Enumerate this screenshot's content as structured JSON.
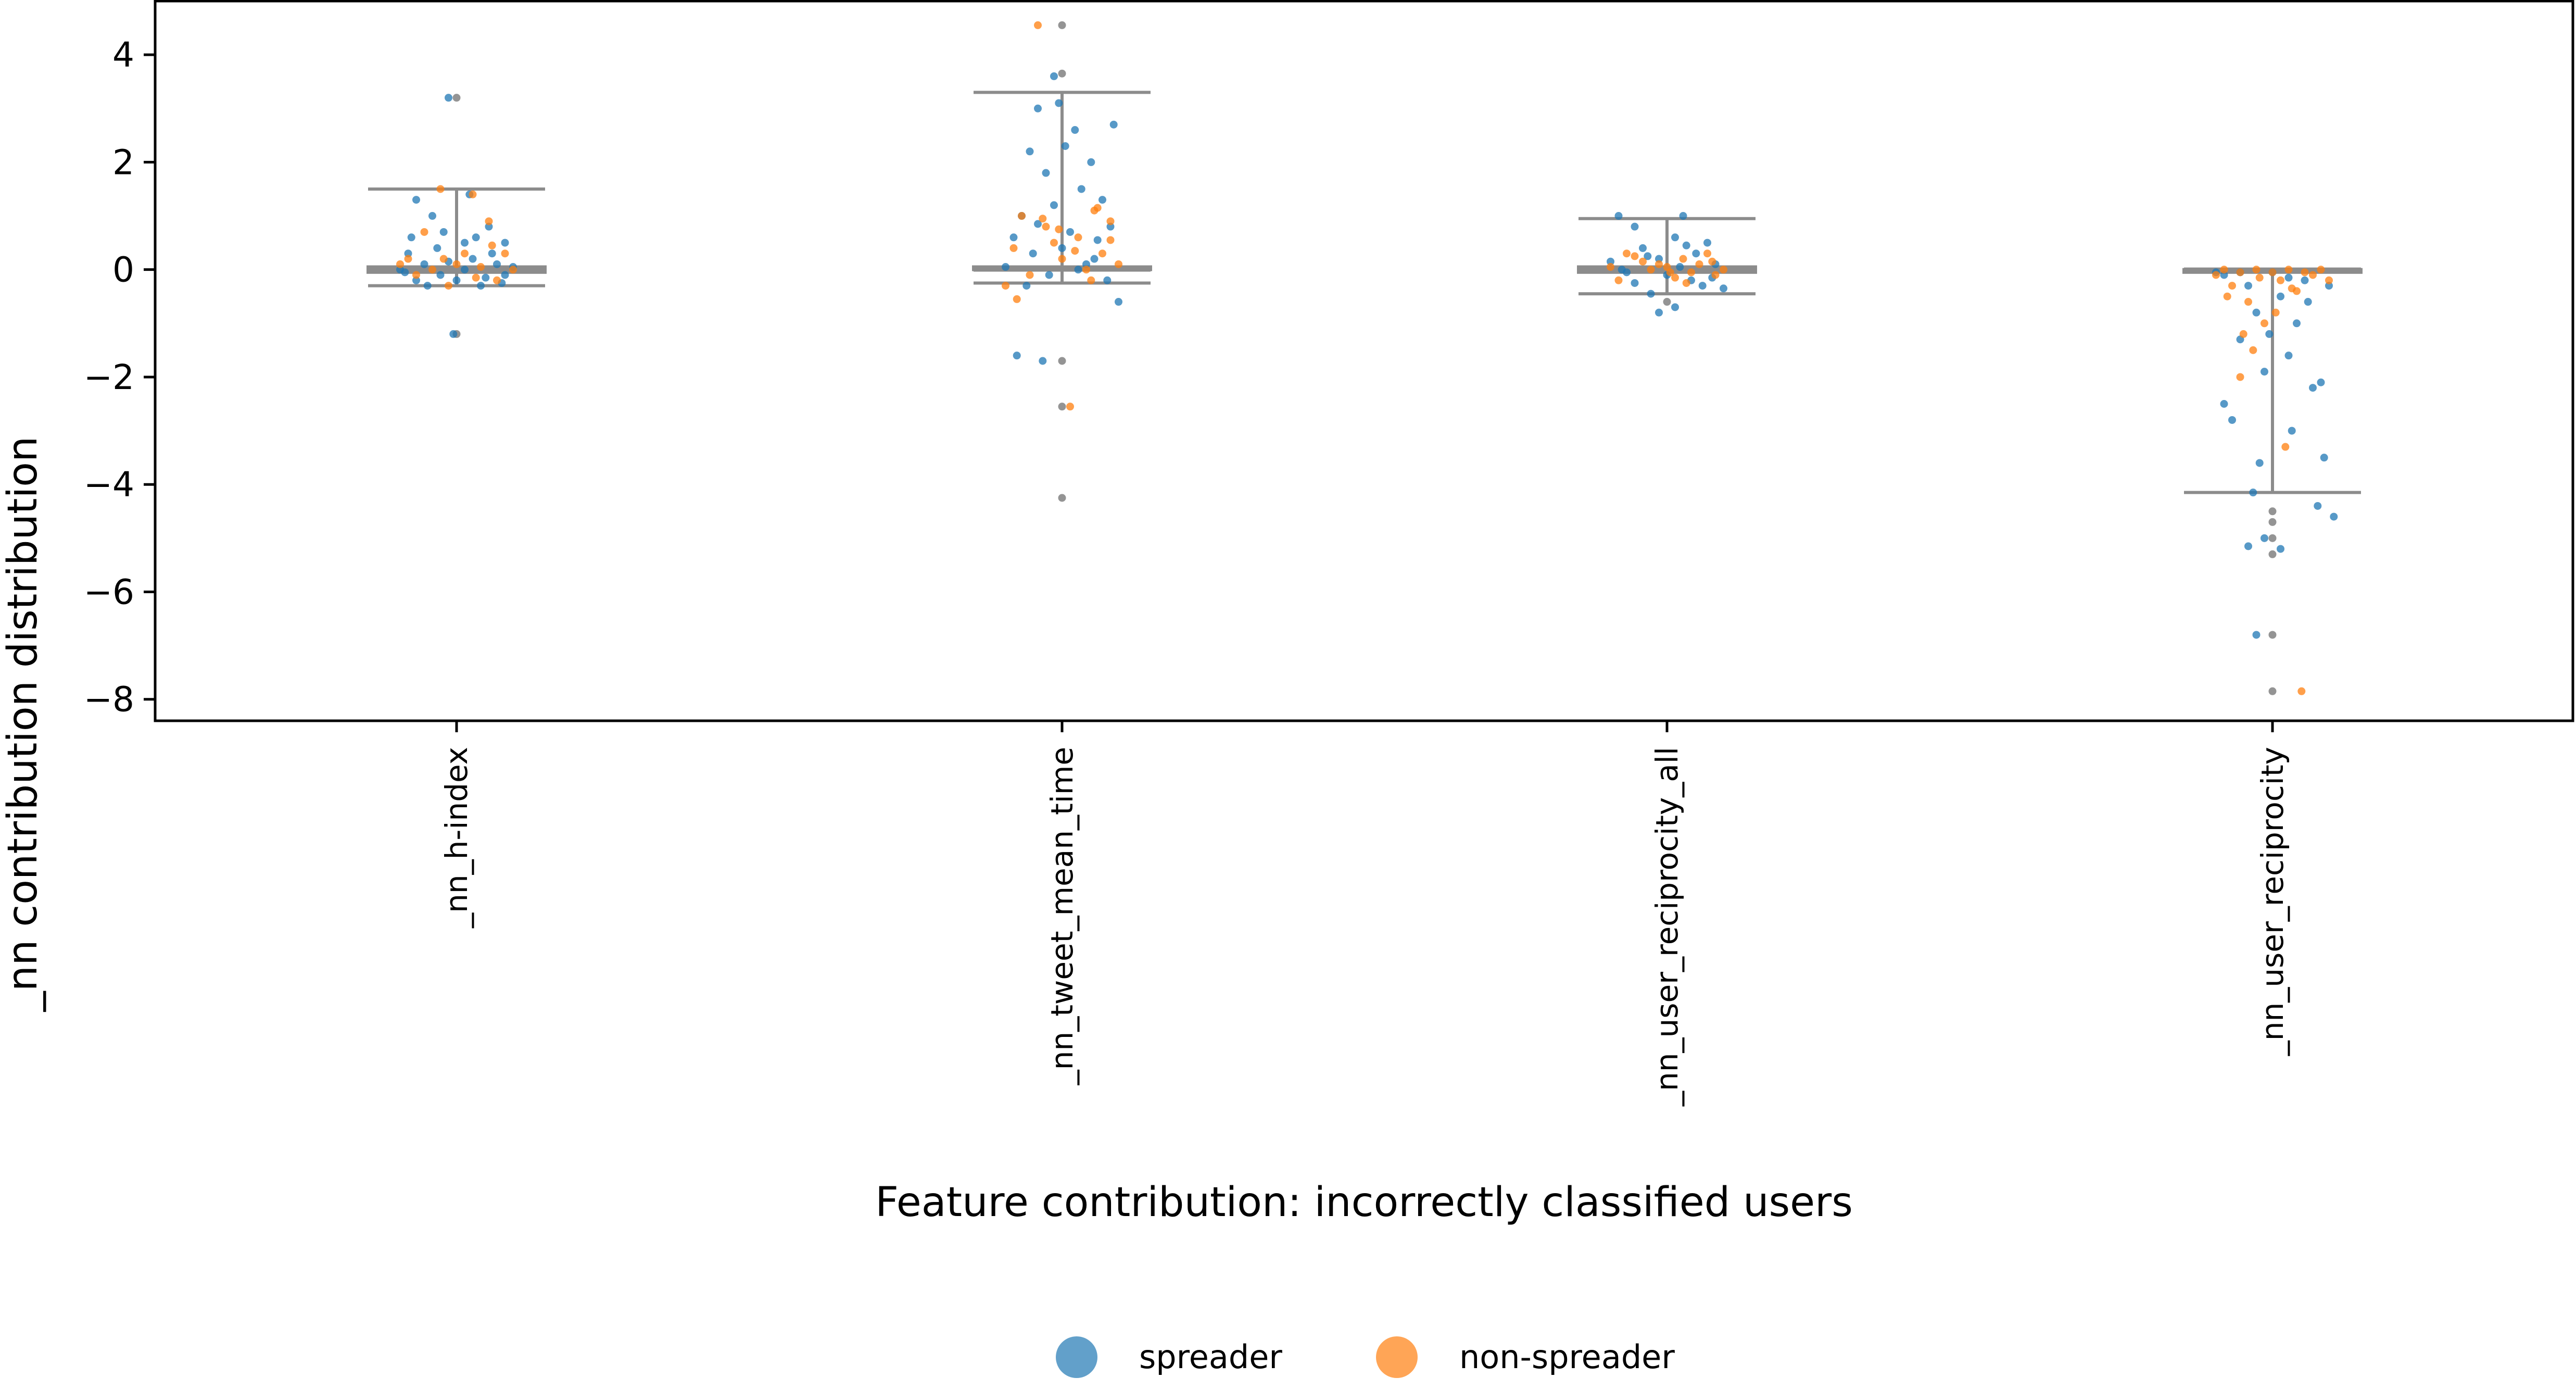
{
  "chart_data": {
    "type": "scatter",
    "subtype": "strip-with-boxplot",
    "title": "",
    "xlabel": "Feature contribution: incorrectly classified users",
    "ylabel": "_nn contribution distribution",
    "ylim": [
      -8.4,
      5.0
    ],
    "yticks": [
      4,
      2,
      0,
      -2,
      -4,
      -6,
      -8
    ],
    "ytick_labels": [
      "4",
      "2",
      "0",
      "−2",
      "−4",
      "−6",
      "−8"
    ],
    "categories": [
      "_nn_h-index",
      "_nn_tweet_mean_time",
      "_nn_user_reciprocity_all",
      "_nn_user_reciprocity"
    ],
    "grid": false,
    "legend_position": "bottom-center",
    "legend": [
      {
        "name": "spreader",
        "color": "#1f77b4"
      },
      {
        "name": "non-spreader",
        "color": "#ff7f0e"
      }
    ],
    "boxplot": [
      {
        "category": "_nn_h-index",
        "q1": -0.05,
        "median": 0.0,
        "q3": 0.05,
        "whisker_low": -0.3,
        "whisker_high": 1.5
      },
      {
        "category": "_nn_tweet_mean_time",
        "q1": 0.0,
        "median": 0.0,
        "q3": 0.05,
        "whisker_low": -0.25,
        "whisker_high": 3.3
      },
      {
        "category": "_nn_user_reciprocity_all",
        "q1": -0.05,
        "median": 0.0,
        "q3": 0.05,
        "whisker_low": -0.45,
        "whisker_high": 0.95
      },
      {
        "category": "_nn_user_reciprocity",
        "q1": -0.05,
        "median": 0.0,
        "q3": 0.0,
        "whisker_low": -4.15,
        "whisker_high": 0.0
      }
    ],
    "outliers": [
      {
        "category": "_nn_h-index",
        "values": [
          3.2,
          -1.2
        ]
      },
      {
        "category": "_nn_tweet_mean_time",
        "values": [
          4.55,
          3.65,
          -1.7,
          -2.55,
          -4.25
        ]
      },
      {
        "category": "_nn_user_reciprocity_all",
        "values": [
          -0.6
        ]
      },
      {
        "category": "_nn_user_reciprocity",
        "values": [
          -4.5,
          -4.7,
          -5.0,
          -5.3,
          -6.8,
          -7.85
        ]
      }
    ],
    "series": [
      {
        "name": "spreader",
        "points": {
          "_nn_h-index": [
            [
              -0.05,
              3.2
            ],
            [
              -0.02,
              -1.2
            ],
            [
              -0.25,
              1.3
            ],
            [
              -0.15,
              1.0
            ],
            [
              -0.08,
              0.7
            ],
            [
              0.05,
              0.5
            ],
            [
              0.2,
              0.8
            ],
            [
              0.3,
              0.5
            ],
            [
              -0.3,
              0.3
            ],
            [
              -0.2,
              0.1
            ],
            [
              0.1,
              0.2
            ],
            [
              0.25,
              0.1
            ],
            [
              -0.1,
              -0.1
            ],
            [
              0.0,
              -0.2
            ],
            [
              0.15,
              -0.3
            ],
            [
              -0.25,
              -0.2
            ],
            [
              0.3,
              -0.1
            ],
            [
              -0.35,
              0.0
            ],
            [
              0.35,
              0.05
            ],
            [
              0.05,
              0.0
            ],
            [
              -0.12,
              0.4
            ],
            [
              0.18,
              -0.15
            ],
            [
              -0.28,
              0.6
            ],
            [
              0.08,
              1.4
            ],
            [
              0.22,
              0.3
            ],
            [
              -0.18,
              -0.3
            ],
            [
              0.12,
              0.6
            ],
            [
              -0.05,
              0.15
            ],
            [
              0.28,
              -0.25
            ],
            [
              -0.32,
              -0.05
            ]
          ],
          "_nn_tweet_mean_time": [
            [
              -0.05,
              3.6
            ],
            [
              -0.15,
              3.0
            ],
            [
              0.08,
              2.6
            ],
            [
              -0.2,
              2.2
            ],
            [
              0.18,
              2.0
            ],
            [
              -0.1,
              1.8
            ],
            [
              0.12,
              1.5
            ],
            [
              0.25,
              1.3
            ],
            [
              -0.25,
              1.0
            ],
            [
              -0.05,
              1.2
            ],
            [
              0.3,
              0.8
            ],
            [
              -0.3,
              0.6
            ],
            [
              0.0,
              0.4
            ],
            [
              -0.18,
              0.3
            ],
            [
              0.2,
              0.2
            ],
            [
              0.1,
              0.0
            ],
            [
              -0.08,
              -0.1
            ],
            [
              0.28,
              -0.2
            ],
            [
              -0.22,
              -0.3
            ],
            [
              0.35,
              -0.6
            ],
            [
              -0.28,
              -1.6
            ],
            [
              -0.12,
              -1.7
            ],
            [
              0.05,
              0.7
            ],
            [
              0.15,
              0.1
            ],
            [
              -0.35,
              0.05
            ],
            [
              0.22,
              0.55
            ],
            [
              -0.15,
              0.85
            ],
            [
              0.32,
              2.7
            ],
            [
              0.02,
              2.3
            ],
            [
              -0.02,
              3.1
            ]
          ],
          "_nn_user_reciprocity_all": [
            [
              -0.3,
              1.0
            ],
            [
              0.1,
              1.0
            ],
            [
              -0.2,
              0.8
            ],
            [
              0.05,
              0.6
            ],
            [
              0.25,
              0.5
            ],
            [
              -0.15,
              0.4
            ],
            [
              0.18,
              0.3
            ],
            [
              -0.05,
              0.2
            ],
            [
              0.3,
              0.1
            ],
            [
              -0.28,
              0.0
            ],
            [
              0.0,
              -0.1
            ],
            [
              0.15,
              -0.2
            ],
            [
              -0.2,
              -0.25
            ],
            [
              0.22,
              -0.3
            ],
            [
              -0.1,
              -0.45
            ],
            [
              0.05,
              -0.7
            ],
            [
              -0.05,
              -0.8
            ],
            [
              0.35,
              -0.35
            ],
            [
              -0.35,
              0.15
            ],
            [
              0.12,
              0.45
            ],
            [
              -0.12,
              0.25
            ],
            [
              0.28,
              -0.15
            ],
            [
              -0.25,
              -0.05
            ],
            [
              0.08,
              0.05
            ]
          ],
          "_nn_user_reciprocity": [
            [
              -0.3,
              -0.1
            ],
            [
              -0.15,
              -0.3
            ],
            [
              0.05,
              -0.5
            ],
            [
              0.2,
              -0.2
            ],
            [
              -0.1,
              -0.8
            ],
            [
              0.15,
              -1.0
            ],
            [
              -0.2,
              -1.3
            ],
            [
              0.1,
              -1.6
            ],
            [
              -0.05,
              -1.9
            ],
            [
              0.25,
              -2.2
            ],
            [
              -0.3,
              -2.5
            ],
            [
              -0.25,
              -2.8
            ],
            [
              0.3,
              -2.1
            ],
            [
              0.32,
              -3.5
            ],
            [
              -0.08,
              -3.6
            ],
            [
              0.12,
              -3.0
            ],
            [
              -0.12,
              -4.15
            ],
            [
              0.28,
              -4.4
            ],
            [
              0.38,
              -4.6
            ],
            [
              -0.05,
              -5.0
            ],
            [
              0.05,
              -5.2
            ],
            [
              -0.15,
              -5.15
            ],
            [
              -0.1,
              -6.8
            ],
            [
              0.35,
              -0.3
            ],
            [
              -0.35,
              -0.05
            ],
            [
              0.1,
              -0.15
            ],
            [
              0.0,
              -0.05
            ],
            [
              -0.2,
              -0.05
            ],
            [
              0.22,
              -0.6
            ],
            [
              -0.02,
              -1.2
            ]
          ]
        }
      },
      {
        "name": "non-spreader",
        "points": {
          "_nn_h-index": [
            [
              -0.1,
              1.5
            ],
            [
              0.1,
              1.4
            ],
            [
              0.2,
              0.9
            ],
            [
              -0.2,
              0.7
            ],
            [
              0.05,
              0.3
            ],
            [
              -0.3,
              0.2
            ],
            [
              0.3,
              0.3
            ],
            [
              -0.15,
              0.0
            ],
            [
              0.25,
              -0.2
            ],
            [
              0.0,
              0.1
            ],
            [
              -0.05,
              -0.3
            ],
            [
              0.15,
              0.05
            ],
            [
              -0.25,
              -0.1
            ],
            [
              0.35,
              0.0
            ],
            [
              -0.35,
              0.1
            ],
            [
              0.12,
              -0.15
            ],
            [
              -0.08,
              0.2
            ],
            [
              0.22,
              0.45
            ]
          ],
          "_nn_tweet_mean_time": [
            [
              -0.15,
              4.55
            ],
            [
              0.05,
              -2.55
            ],
            [
              -0.25,
              1.0
            ],
            [
              0.2,
              1.1
            ],
            [
              -0.1,
              0.8
            ],
            [
              0.1,
              0.6
            ],
            [
              0.3,
              0.9
            ],
            [
              -0.3,
              0.4
            ],
            [
              0.0,
              0.2
            ],
            [
              0.15,
              0.0
            ],
            [
              -0.2,
              -0.1
            ],
            [
              0.25,
              0.3
            ],
            [
              -0.05,
              0.5
            ],
            [
              0.35,
              0.1
            ],
            [
              -0.35,
              -0.3
            ],
            [
              0.18,
              -0.2
            ],
            [
              -0.12,
              0.95
            ],
            [
              0.08,
              0.35
            ],
            [
              -0.28,
              -0.55
            ],
            [
              0.3,
              0.55
            ],
            [
              -0.02,
              0.75
            ],
            [
              0.22,
              1.15
            ]
          ],
          "_nn_user_reciprocity_all": [
            [
              -0.25,
              0.3
            ],
            [
              0.1,
              0.2
            ],
            [
              -0.1,
              0.0
            ],
            [
              0.2,
              0.1
            ],
            [
              0.3,
              -0.1
            ],
            [
              -0.3,
              -0.2
            ],
            [
              0.0,
              0.05
            ],
            [
              0.15,
              -0.05
            ],
            [
              -0.15,
              0.15
            ],
            [
              0.05,
              -0.15
            ],
            [
              0.25,
              0.3
            ],
            [
              -0.05,
              0.1
            ],
            [
              0.35,
              0.0
            ],
            [
              -0.35,
              0.05
            ],
            [
              0.12,
              -0.25
            ],
            [
              -0.2,
              0.25
            ],
            [
              0.28,
              0.15
            ],
            [
              0.02,
              -0.05
            ]
          ],
          "_nn_user_reciprocity": [
            [
              -0.3,
              0.0
            ],
            [
              -0.2,
              -0.05
            ],
            [
              -0.1,
              0.0
            ],
            [
              0.0,
              -0.05
            ],
            [
              0.1,
              0.0
            ],
            [
              0.2,
              -0.05
            ],
            [
              0.3,
              0.0
            ],
            [
              -0.25,
              -0.3
            ],
            [
              -0.15,
              -0.6
            ],
            [
              -0.05,
              -1.0
            ],
            [
              0.05,
              -0.2
            ],
            [
              0.15,
              -0.4
            ],
            [
              0.25,
              -0.1
            ],
            [
              -0.28,
              -0.5
            ],
            [
              -0.12,
              -1.5
            ],
            [
              -0.2,
              -2.0
            ],
            [
              0.02,
              -0.8
            ],
            [
              -0.18,
              -1.2
            ],
            [
              0.35,
              -0.2
            ],
            [
              -0.35,
              -0.1
            ],
            [
              0.08,
              -3.3
            ],
            [
              0.18,
              -7.85
            ],
            [
              -0.08,
              -0.15
            ],
            [
              0.12,
              -0.35
            ]
          ]
        }
      }
    ]
  }
}
